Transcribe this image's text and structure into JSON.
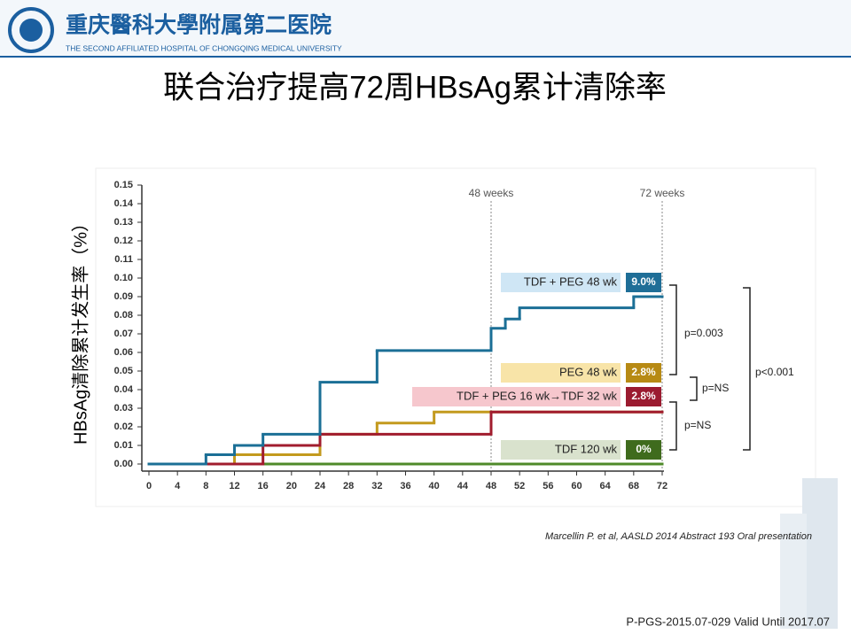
{
  "header": {
    "logo_cn": "重庆醫科大學附属第二医院",
    "logo_en": "THE SECOND AFFILIATED HOSPITAL OF CHONGQING MEDICAL UNIVERSITY"
  },
  "title": "联合治疗提高72周HBsAg累计清除率",
  "chart_data": {
    "type": "line",
    "step": true,
    "y_label": "HBsAg清除累计发生率（%）",
    "xlim": [
      0,
      72
    ],
    "xticks": [
      0,
      4,
      8,
      12,
      16,
      20,
      24,
      28,
      32,
      36,
      40,
      44,
      48,
      52,
      56,
      60,
      64,
      68,
      72
    ],
    "ylim": [
      0,
      0.15
    ],
    "yticks": [
      {
        "value": 0,
        "label": "0.00"
      },
      0.01,
      0.02,
      0.03,
      0.04,
      0.05,
      0.06,
      0.07,
      0.08,
      0.09,
      {
        "value": 0.1,
        "label": "0.10"
      },
      0.11,
      0.12,
      0.13,
      0.14,
      0.15
    ],
    "ref_lines": [
      {
        "x": 48,
        "label": "48 weeks"
      },
      {
        "x": 72,
        "label": "72 weeks"
      }
    ],
    "series": [
      {
        "name": "TDF 120 wk",
        "color": "#4f8a2a",
        "box_color": "#d9e2cd",
        "label_color": "#3f6b1d",
        "end_label": "0%",
        "x": [
          0,
          72
        ],
        "values": [
          0,
          0
        ]
      },
      {
        "name": "PEG 48 wk",
        "color": "#c39a1e",
        "box_color": "#f8e4a8",
        "label_color": "#b78a14",
        "end_label": "2.8%",
        "x": [
          0,
          12,
          24,
          32,
          40,
          48,
          72
        ],
        "values": [
          0,
          0.005,
          0.016,
          0.022,
          0.028,
          0.028,
          0.028
        ]
      },
      {
        "name": "TDF + PEG 16 wk→TDF 32 wk",
        "color": "#a11c2e",
        "box_color": "#f6c7cd",
        "label_color": "#9b1b30",
        "end_label": "2.8%",
        "x": [
          0,
          16,
          24,
          48,
          72
        ],
        "values": [
          0,
          0.01,
          0.016,
          0.028,
          0.028
        ]
      },
      {
        "name": "TDF + PEG 48 wk",
        "color": "#1b6f96",
        "box_color": "#cfe6f5",
        "label_color": "#1f6e97",
        "end_label": "9.0%",
        "x": [
          0,
          8,
          12,
          16,
          24,
          32,
          48,
          50,
          52,
          68,
          72
        ],
        "values": [
          0,
          0.005,
          0.01,
          0.016,
          0.044,
          0.061,
          0.073,
          0.078,
          0.084,
          0.09,
          0.09
        ]
      }
    ],
    "annotations": [
      "p=0.003",
      "p=NS",
      "p=NS",
      "p<0.001"
    ]
  },
  "citation": "Marcellin P. et al, AASLD 2014 Abstract 193 Oral presentation",
  "footer": "P-PGS-2015.07-029 Valid Until 2017.07"
}
